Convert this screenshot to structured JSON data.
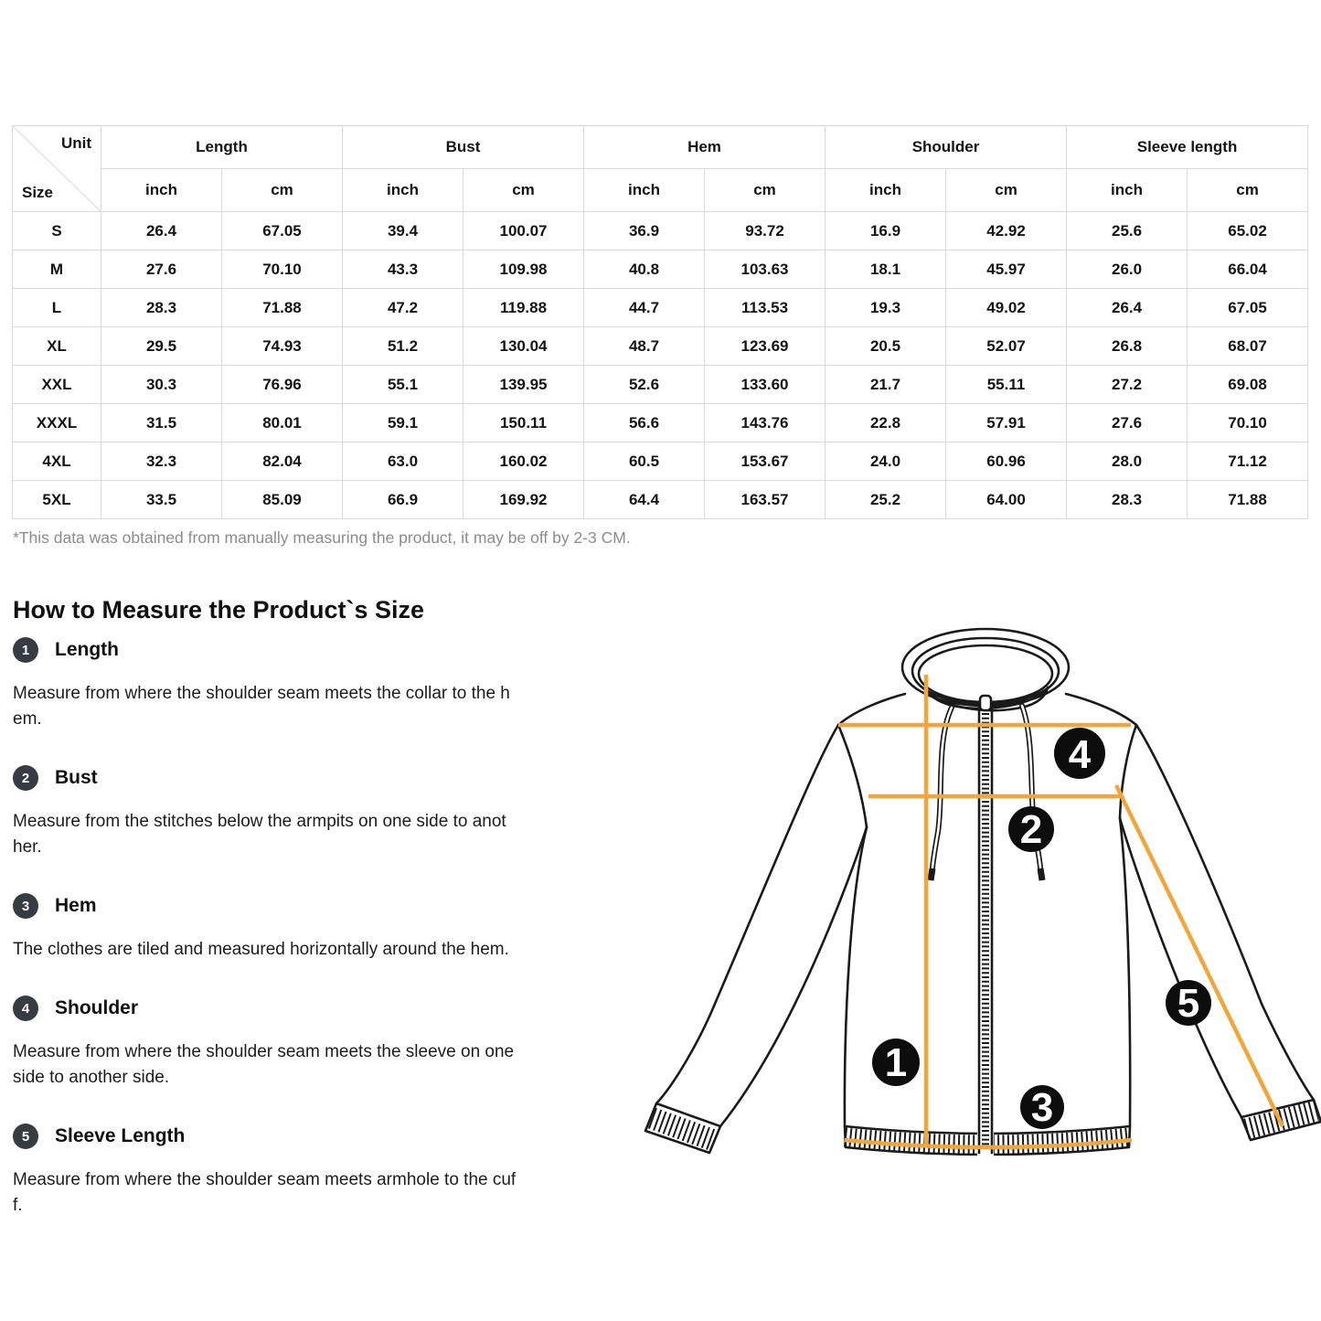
{
  "table": {
    "corner": {
      "top": "Unit",
      "bottom": "Size"
    },
    "groups": [
      {
        "label": "Length"
      },
      {
        "label": "Bust"
      },
      {
        "label": "Hem"
      },
      {
        "label": "Shoulder"
      },
      {
        "label": "Sleeve length"
      }
    ],
    "units": [
      "inch",
      "cm",
      "inch",
      "cm",
      "inch",
      "cm",
      "inch",
      "cm",
      "inch",
      "cm"
    ],
    "rows": [
      {
        "size": "S",
        "values": [
          "26.4",
          "67.05",
          "39.4",
          "100.07",
          "36.9",
          "93.72",
          "16.9",
          "42.92",
          "25.6",
          "65.02"
        ]
      },
      {
        "size": "M",
        "values": [
          "27.6",
          "70.10",
          "43.3",
          "109.98",
          "40.8",
          "103.63",
          "18.1",
          "45.97",
          "26.0",
          "66.04"
        ]
      },
      {
        "size": "L",
        "values": [
          "28.3",
          "71.88",
          "47.2",
          "119.88",
          "44.7",
          "113.53",
          "19.3",
          "49.02",
          "26.4",
          "67.05"
        ]
      },
      {
        "size": "XL",
        "values": [
          "29.5",
          "74.93",
          "51.2",
          "130.04",
          "48.7",
          "123.69",
          "20.5",
          "52.07",
          "26.8",
          "68.07"
        ]
      },
      {
        "size": "XXL",
        "values": [
          "30.3",
          "76.96",
          "55.1",
          "139.95",
          "52.6",
          "133.60",
          "21.7",
          "55.11",
          "27.2",
          "69.08"
        ]
      },
      {
        "size": "XXXL",
        "values": [
          "31.5",
          "80.01",
          "59.1",
          "150.11",
          "56.6",
          "143.76",
          "22.8",
          "57.91",
          "27.6",
          "70.10"
        ]
      },
      {
        "size": "4XL",
        "values": [
          "32.3",
          "82.04",
          "63.0",
          "160.02",
          "60.5",
          "153.67",
          "24.0",
          "60.96",
          "28.0",
          "71.12"
        ]
      },
      {
        "size": "5XL",
        "values": [
          "33.5",
          "85.09",
          "66.9",
          "169.92",
          "64.4",
          "163.57",
          "25.2",
          "64.00",
          "28.3",
          "71.88"
        ]
      }
    ],
    "footnote": "*This data was obtained from manually measuring the product, it may be off by 2-3 CM."
  },
  "section": {
    "heading": "How to Measure the Product`s Size",
    "items": [
      {
        "num": "1",
        "label": "Length",
        "desc": "Measure from where the shoulder seam meets the collar to the h\nem."
      },
      {
        "num": "2",
        "label": "Bust",
        "desc": "Measure from the stitches below the armpits on one side to anot\nher."
      },
      {
        "num": "3",
        "label": "Hem",
        "desc": "The clothes are tiled and measured horizontally around the hem."
      },
      {
        "num": "4",
        "label": "Shoulder",
        "desc": "Measure from where the shoulder seam meets the sleeve on one\nside to another side."
      },
      {
        "num": "5",
        "label": "Sleeve Length",
        "desc": "Measure from where the shoulder seam meets armhole to the cuf\nf."
      }
    ]
  },
  "diagram": {
    "badges": [
      {
        "n": "1"
      },
      {
        "n": "2"
      },
      {
        "n": "3"
      },
      {
        "n": "4"
      },
      {
        "n": "5"
      }
    ],
    "colors": {
      "measure_line": "#F1A63C",
      "badge_bg": "#0D0D0D",
      "badge_text": "#FFFFFF",
      "item_badge": "#353C43",
      "outline": "#1A1A1A",
      "table_border": "#D9D9D9",
      "footnote_text": "#8C8C8C"
    }
  }
}
